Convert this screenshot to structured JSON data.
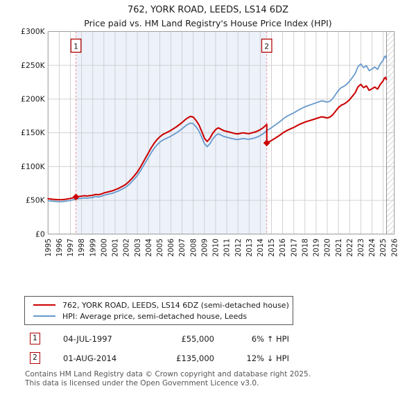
{
  "title": "762, YORK ROAD, LEEDS, LS14 6DZ",
  "subtitle": "Price paid vs. HM Land Registry's House Price Index (HPI)",
  "legend": [
    {
      "label": "762, YORK ROAD, LEEDS, LS14 6DZ (semi-detached house)",
      "color": "#cc0000"
    },
    {
      "label": "HPI: Average price, semi-detached house, Leeds",
      "color": "#6699cc"
    }
  ],
  "transactions": [
    {
      "marker": "1",
      "date": "04-JUL-1997",
      "price": "£55,000",
      "hpi_diff": "6% ↑ HPI"
    },
    {
      "marker": "2",
      "date": "01-AUG-2014",
      "price": "£135,000",
      "hpi_diff": "12% ↓ HPI"
    }
  ],
  "footer": {
    "line1": "Contains HM Land Registry data © Crown copyright and database right 2025.",
    "line2": "This data is licensed under the Open Government Licence v3.0."
  },
  "chart_data": {
    "type": "line",
    "title": "762, YORK ROAD, LEEDS, LS14 6DZ",
    "subtitle": "Price paid vs. HM Land Registry's House Price Index (HPI)",
    "unit": "GBP thousands",
    "x_min": 1995,
    "x_max": 2026,
    "y_max_k": 300,
    "x_ticks": [
      1995,
      1996,
      1997,
      1998,
      1999,
      2000,
      2001,
      2002,
      2003,
      2004,
      2005,
      2006,
      2007,
      2008,
      2009,
      2010,
      2011,
      2012,
      2013,
      2014,
      2015,
      2016,
      2017,
      2018,
      2019,
      2020,
      2021,
      2022,
      2023,
      2024,
      2025,
      2026
    ],
    "y_ticks": [
      {
        "label": "£0",
        "v": 0
      },
      {
        "label": "£50K",
        "v": 50
      },
      {
        "label": "£100K",
        "v": 100
      },
      {
        "label": "£150K",
        "v": 150
      },
      {
        "label": "£200K",
        "v": 200
      },
      {
        "label": "£250K",
        "v": 250
      },
      {
        "label": "£300K",
        "v": 300
      }
    ],
    "colors": {
      "property": "#cc0000",
      "hpi": "#6699cc",
      "shade": "#ecf1fa",
      "grid": "#cccccc",
      "border": "#999999",
      "marker_line": "#ef8080",
      "marker_box": "#b00000",
      "hatch": "#aaaaaa"
    },
    "shaded_region": [
      1997.5,
      2014.58
    ],
    "hatch_from": 2025.3,
    "sale_markers": [
      {
        "label": "1",
        "x": 1997.5,
        "y": 55
      },
      {
        "label": "2",
        "x": 2014.58,
        "y": 135
      }
    ],
    "series": [
      {
        "name": "762, YORK ROAD, LEEDS, LS14 6DZ (semi-detached house)",
        "color": "#cc0000",
        "points": [
          [
            1995.0,
            52.5
          ],
          [
            1995.25,
            51.9
          ],
          [
            1995.5,
            51.5
          ],
          [
            1995.75,
            51.2
          ],
          [
            1996.0,
            50.9
          ],
          [
            1996.25,
            51.1
          ],
          [
            1996.5,
            51.5
          ],
          [
            1996.75,
            52.1
          ],
          [
            1997.0,
            52.8
          ],
          [
            1997.25,
            53.8
          ],
          [
            1997.5,
            55.0
          ],
          [
            1997.75,
            55.6
          ],
          [
            1998.0,
            56.2
          ],
          [
            1998.25,
            56.8
          ],
          [
            1998.5,
            56.4
          ],
          [
            1998.75,
            57.0
          ],
          [
            1999.0,
            57.4
          ],
          [
            1999.25,
            58.8
          ],
          [
            1999.5,
            58.3
          ],
          [
            1999.75,
            59.3
          ],
          [
            2000.0,
            60.9
          ],
          [
            2000.25,
            62.0
          ],
          [
            2000.5,
            63.1
          ],
          [
            2000.75,
            64.1
          ],
          [
            2001.0,
            65.7
          ],
          [
            2001.25,
            67.3
          ],
          [
            2001.5,
            69.4
          ],
          [
            2001.75,
            71.5
          ],
          [
            2002.0,
            74.2
          ],
          [
            2002.25,
            77.9
          ],
          [
            2002.5,
            82.1
          ],
          [
            2002.75,
            86.9
          ],
          [
            2003.0,
            92.2
          ],
          [
            2003.25,
            98.6
          ],
          [
            2003.5,
            106.0
          ],
          [
            2003.75,
            113.4
          ],
          [
            2004.0,
            120.8
          ],
          [
            2004.25,
            128.2
          ],
          [
            2004.5,
            134.6
          ],
          [
            2004.75,
            139.9
          ],
          [
            2005.0,
            144.1
          ],
          [
            2005.25,
            147.3
          ],
          [
            2005.5,
            149.4
          ],
          [
            2005.75,
            151.5
          ],
          [
            2006.0,
            153.7
          ],
          [
            2006.25,
            156.3
          ],
          [
            2006.5,
            159.0
          ],
          [
            2006.75,
            162.1
          ],
          [
            2007.0,
            165.3
          ],
          [
            2007.25,
            169.0
          ],
          [
            2007.5,
            172.2
          ],
          [
            2007.75,
            174.3
          ],
          [
            2008.0,
            173.3
          ],
          [
            2008.25,
            168.5
          ],
          [
            2008.5,
            162.1
          ],
          [
            2008.75,
            152.6
          ],
          [
            2009.0,
            142.0
          ],
          [
            2009.25,
            137.2
          ],
          [
            2009.5,
            142.0
          ],
          [
            2009.75,
            149.4
          ],
          [
            2010.0,
            154.7
          ],
          [
            2010.25,
            157.4
          ],
          [
            2010.5,
            155.2
          ],
          [
            2010.75,
            153.1
          ],
          [
            2011.0,
            152.1
          ],
          [
            2011.25,
            151.0
          ],
          [
            2011.5,
            150.0
          ],
          [
            2011.75,
            148.9
          ],
          [
            2012.0,
            148.4
          ],
          [
            2012.25,
            149.4
          ],
          [
            2012.5,
            150.0
          ],
          [
            2012.75,
            149.2
          ],
          [
            2013.0,
            148.9
          ],
          [
            2013.25,
            150.0
          ],
          [
            2013.5,
            151.0
          ],
          [
            2013.75,
            152.6
          ],
          [
            2014.0,
            154.7
          ],
          [
            2014.25,
            157.4
          ],
          [
            2014.5,
            161.1
          ],
          [
            2014.58,
            162.6
          ],
          [
            2014.58,
            135.0
          ],
          [
            2014.75,
            136.4
          ],
          [
            2015.0,
            138.6
          ],
          [
            2015.25,
            141.2
          ],
          [
            2015.5,
            143.9
          ],
          [
            2015.75,
            146.5
          ],
          [
            2016.0,
            149.6
          ],
          [
            2016.25,
            152.2
          ],
          [
            2016.5,
            154.4
          ],
          [
            2016.75,
            156.2
          ],
          [
            2017.0,
            158.0
          ],
          [
            2017.25,
            160.2
          ],
          [
            2017.5,
            162.4
          ],
          [
            2017.75,
            164.1
          ],
          [
            2018.0,
            165.9
          ],
          [
            2018.25,
            167.2
          ],
          [
            2018.5,
            168.5
          ],
          [
            2018.75,
            169.8
          ],
          [
            2019.0,
            171.2
          ],
          [
            2019.25,
            172.5
          ],
          [
            2019.5,
            173.8
          ],
          [
            2019.75,
            172.9
          ],
          [
            2020.0,
            172.0
          ],
          [
            2020.25,
            173.4
          ],
          [
            2020.5,
            176.9
          ],
          [
            2020.75,
            182.2
          ],
          [
            2021.0,
            187.4
          ],
          [
            2021.25,
            191.0
          ],
          [
            2021.5,
            192.7
          ],
          [
            2021.75,
            195.4
          ],
          [
            2022.0,
            199.3
          ],
          [
            2022.25,
            204.2
          ],
          [
            2022.5,
            209.4
          ],
          [
            2022.75,
            218.2
          ],
          [
            2023.0,
            221.8
          ],
          [
            2023.25,
            216.9
          ],
          [
            2023.5,
            219.6
          ],
          [
            2023.75,
            213.0
          ],
          [
            2024.0,
            215.2
          ],
          [
            2024.25,
            217.8
          ],
          [
            2024.5,
            214.7
          ],
          [
            2024.75,
            221.8
          ],
          [
            2025.0,
            227.0
          ],
          [
            2025.1,
            230.6
          ],
          [
            2025.2,
            232.3
          ],
          [
            2025.3,
            228.8
          ]
        ]
      },
      {
        "name": "HPI: Average price, semi-detached house, Leeds",
        "color": "#6699cc",
        "points": [
          [
            1995.0,
            49.5
          ],
          [
            1995.25,
            49.0
          ],
          [
            1995.5,
            48.6
          ],
          [
            1995.75,
            48.3
          ],
          [
            1996.0,
            48.0
          ],
          [
            1996.25,
            48.2
          ],
          [
            1996.5,
            48.6
          ],
          [
            1996.75,
            49.2
          ],
          [
            1997.0,
            49.8
          ],
          [
            1997.25,
            50.8
          ],
          [
            1997.5,
            51.9
          ],
          [
            1997.75,
            52.5
          ],
          [
            1998.0,
            53.0
          ],
          [
            1998.25,
            53.6
          ],
          [
            1998.5,
            53.2
          ],
          [
            1998.75,
            53.8
          ],
          [
            1999.0,
            54.2
          ],
          [
            1999.25,
            55.5
          ],
          [
            1999.5,
            55.0
          ],
          [
            1999.75,
            56.0
          ],
          [
            2000.0,
            57.5
          ],
          [
            2000.25,
            58.5
          ],
          [
            2000.5,
            59.5
          ],
          [
            2000.75,
            60.5
          ],
          [
            2001.0,
            62.0
          ],
          [
            2001.25,
            63.5
          ],
          [
            2001.5,
            65.5
          ],
          [
            2001.75,
            67.5
          ],
          [
            2002.0,
            70.0
          ],
          [
            2002.25,
            73.5
          ],
          [
            2002.5,
            77.5
          ],
          [
            2002.75,
            82.0
          ],
          [
            2003.0,
            87.0
          ],
          [
            2003.25,
            93.0
          ],
          [
            2003.5,
            100.0
          ],
          [
            2003.75,
            107.0
          ],
          [
            2004.0,
            114.0
          ],
          [
            2004.25,
            121.0
          ],
          [
            2004.5,
            127.0
          ],
          [
            2004.75,
            132.0
          ],
          [
            2005.0,
            136.0
          ],
          [
            2005.25,
            139.0
          ],
          [
            2005.5,
            141.0
          ],
          [
            2005.75,
            143.0
          ],
          [
            2006.0,
            145.0
          ],
          [
            2006.25,
            147.5
          ],
          [
            2006.5,
            150.0
          ],
          [
            2006.75,
            153.0
          ],
          [
            2007.0,
            156.0
          ],
          [
            2007.25,
            159.5
          ],
          [
            2007.5,
            162.5
          ],
          [
            2007.75,
            164.5
          ],
          [
            2008.0,
            163.5
          ],
          [
            2008.25,
            159.0
          ],
          [
            2008.5,
            153.0
          ],
          [
            2008.75,
            144.0
          ],
          [
            2009.0,
            134.0
          ],
          [
            2009.25,
            129.5
          ],
          [
            2009.5,
            134.0
          ],
          [
            2009.75,
            141.0
          ],
          [
            2010.0,
            146.0
          ],
          [
            2010.25,
            148.5
          ],
          [
            2010.5,
            146.5
          ],
          [
            2010.75,
            144.5
          ],
          [
            2011.0,
            143.5
          ],
          [
            2011.25,
            142.5
          ],
          [
            2011.5,
            141.5
          ],
          [
            2011.75,
            140.5
          ],
          [
            2012.0,
            140.0
          ],
          [
            2012.25,
            141.0
          ],
          [
            2012.5,
            141.5
          ],
          [
            2012.75,
            140.8
          ],
          [
            2013.0,
            140.5
          ],
          [
            2013.25,
            141.5
          ],
          [
            2013.5,
            142.5
          ],
          [
            2013.75,
            144.0
          ],
          [
            2014.0,
            146.0
          ],
          [
            2014.25,
            148.5
          ],
          [
            2014.5,
            152.0
          ],
          [
            2014.58,
            153.4
          ],
          [
            2014.75,
            155.0
          ],
          [
            2015.0,
            157.5
          ],
          [
            2015.25,
            160.5
          ],
          [
            2015.5,
            163.5
          ],
          [
            2015.75,
            166.5
          ],
          [
            2016.0,
            170.0
          ],
          [
            2016.25,
            173.0
          ],
          [
            2016.5,
            175.5
          ],
          [
            2016.75,
            177.5
          ],
          [
            2017.0,
            179.5
          ],
          [
            2017.25,
            182.0
          ],
          [
            2017.5,
            184.5
          ],
          [
            2017.75,
            186.5
          ],
          [
            2018.0,
            188.5
          ],
          [
            2018.25,
            190.0
          ],
          [
            2018.5,
            191.5
          ],
          [
            2018.75,
            193.0
          ],
          [
            2019.0,
            194.5
          ],
          [
            2019.25,
            196.0
          ],
          [
            2019.5,
            197.5
          ],
          [
            2019.75,
            196.5
          ],
          [
            2020.0,
            195.5
          ],
          [
            2020.25,
            197.0
          ],
          [
            2020.5,
            201.0
          ],
          [
            2020.75,
            207.0
          ],
          [
            2021.0,
            213.0
          ],
          [
            2021.25,
            217.0
          ],
          [
            2021.5,
            219.0
          ],
          [
            2021.75,
            222.0
          ],
          [
            2022.0,
            226.5
          ],
          [
            2022.25,
            232.0
          ],
          [
            2022.5,
            238.0
          ],
          [
            2022.75,
            248.0
          ],
          [
            2023.0,
            252.0
          ],
          [
            2023.25,
            246.5
          ],
          [
            2023.5,
            249.5
          ],
          [
            2023.75,
            242.0
          ],
          [
            2024.0,
            244.5
          ],
          [
            2024.25,
            247.5
          ],
          [
            2024.5,
            244.0
          ],
          [
            2024.75,
            252.0
          ],
          [
            2025.0,
            257.5
          ],
          [
            2025.1,
            262.0
          ],
          [
            2025.2,
            264.0
          ],
          [
            2025.3,
            260.0
          ]
        ]
      }
    ]
  }
}
